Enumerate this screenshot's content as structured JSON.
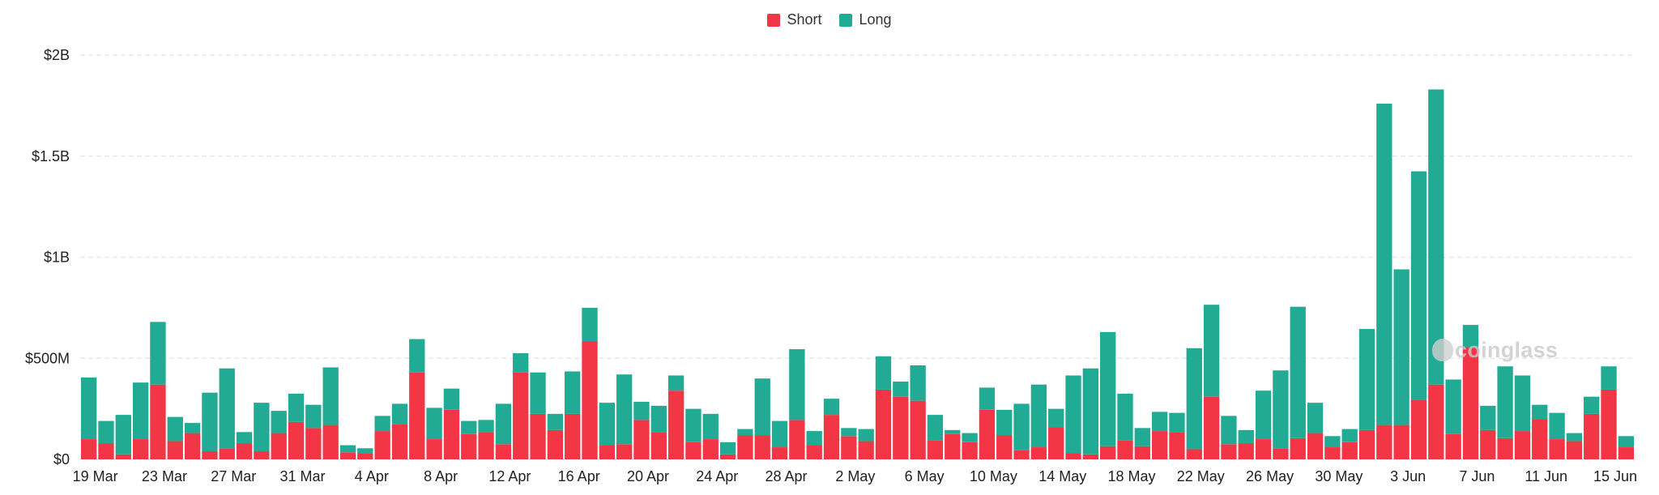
{
  "legend": {
    "short_label": "Short",
    "long_label": "Long"
  },
  "watermark": "coinglass",
  "colors": {
    "short": "#f23645",
    "long": "#22ab94",
    "grid": "#e8e8e8",
    "text": "#222222"
  },
  "chart_data": {
    "type": "bar",
    "stacked": true,
    "ylim": [
      0,
      2000000000
    ],
    "y_ticks": [
      {
        "value": 0,
        "label": "$0"
      },
      {
        "value": 500000000,
        "label": "$500M"
      },
      {
        "value": 1000000000,
        "label": "$1B"
      },
      {
        "value": 1500000000,
        "label": "$1.5B"
      },
      {
        "value": 2000000000,
        "label": "$2B"
      }
    ],
    "grid": true,
    "legend_position": "top-center",
    "x_tick_labels": [
      "19 Mar",
      "23 Mar",
      "27 Mar",
      "31 Mar",
      "4 Apr",
      "8 Apr",
      "12 Apr",
      "16 Apr",
      "20 Apr",
      "24 Apr",
      "28 Apr",
      "2 May",
      "6 May",
      "10 May",
      "14 May",
      "18 May",
      "22 May",
      "26 May",
      "30 May",
      "3 Jun",
      "7 Jun",
      "11 Jun",
      "15 Jun"
    ],
    "x_tick_every": 4,
    "x": [
      "19 Mar",
      "20 Mar",
      "21 Mar",
      "22 Mar",
      "23 Mar",
      "24 Mar",
      "25 Mar",
      "26 Mar",
      "27 Mar",
      "28 Mar",
      "29 Mar",
      "30 Mar",
      "31 Mar",
      "1 Apr",
      "2 Apr",
      "3 Apr",
      "4 Apr",
      "5 Apr",
      "6 Apr",
      "7 Apr",
      "8 Apr",
      "9 Apr",
      "10 Apr",
      "11 Apr",
      "12 Apr",
      "13 Apr",
      "14 Apr",
      "15 Apr",
      "16 Apr",
      "17 Apr",
      "18 Apr",
      "19 Apr",
      "20 Apr",
      "21 Apr",
      "22 Apr",
      "23 Apr",
      "24 Apr",
      "25 Apr",
      "26 Apr",
      "27 Apr",
      "28 Apr",
      "29 Apr",
      "30 Apr",
      "1 May",
      "2 May",
      "3 May",
      "4 May",
      "5 May",
      "6 May",
      "7 May",
      "8 May",
      "9 May",
      "10 May",
      "11 May",
      "12 May",
      "13 May",
      "14 May",
      "15 May",
      "16 May",
      "17 May",
      "18 May",
      "19 May",
      "20 May",
      "21 May",
      "22 May",
      "23 May",
      "24 May",
      "25 May",
      "26 May",
      "27 May",
      "28 May",
      "29 May",
      "30 May",
      "31 May",
      "1 Jun",
      "2 Jun",
      "3 Jun",
      "4 Jun",
      "5 Jun",
      "6 Jun",
      "7 Jun",
      "8 Jun",
      "9 Jun",
      "10 Jun",
      "11 Jun",
      "12 Jun",
      "13 Jun",
      "14 Jun",
      "15 Jun",
      "16 Jun"
    ],
    "series": [
      {
        "name": "Short",
        "values": [
          100,
          80,
          25,
          100,
          370,
          90,
          130,
          40,
          55,
          80,
          40,
          130,
          185,
          155,
          170,
          35,
          30,
          140,
          175,
          430,
          100,
          245,
          125,
          135,
          75,
          430,
          225,
          145,
          225,
          585,
          70,
          75,
          195,
          135,
          340,
          85,
          100,
          25,
          120,
          120,
          60,
          195,
          70,
          220,
          115,
          90,
          345,
          310,
          290,
          95,
          125,
          85,
          245,
          120,
          45,
          60,
          160,
          30,
          25,
          65,
          95,
          65,
          140,
          135,
          50,
          310,
          75,
          80,
          100,
          55,
          105,
          130,
          60,
          85,
          145,
          170,
          170,
          295,
          370,
          125,
          555,
          145,
          105,
          140,
          200,
          100,
          90,
          225,
          345,
          60
        ]
      },
      {
        "name": "Long",
        "values": [
          305,
          110,
          195,
          280,
          310,
          120,
          50,
          290,
          395,
          55,
          240,
          110,
          140,
          115,
          285,
          35,
          25,
          75,
          100,
          165,
          155,
          105,
          65,
          60,
          200,
          95,
          205,
          80,
          210,
          165,
          210,
          345,
          90,
          130,
          75,
          165,
          125,
          60,
          30,
          280,
          130,
          350,
          70,
          80,
          40,
          60,
          165,
          75,
          175,
          125,
          20,
          45,
          110,
          125,
          230,
          310,
          90,
          385,
          425,
          565,
          230,
          90,
          95,
          95,
          500,
          455,
          140,
          65,
          240,
          385,
          650,
          150,
          55,
          65,
          500,
          1590,
          770,
          1130,
          1460,
          270,
          110,
          120,
          355,
          275,
          70,
          130,
          40,
          85,
          115,
          55
        ]
      }
    ]
  }
}
